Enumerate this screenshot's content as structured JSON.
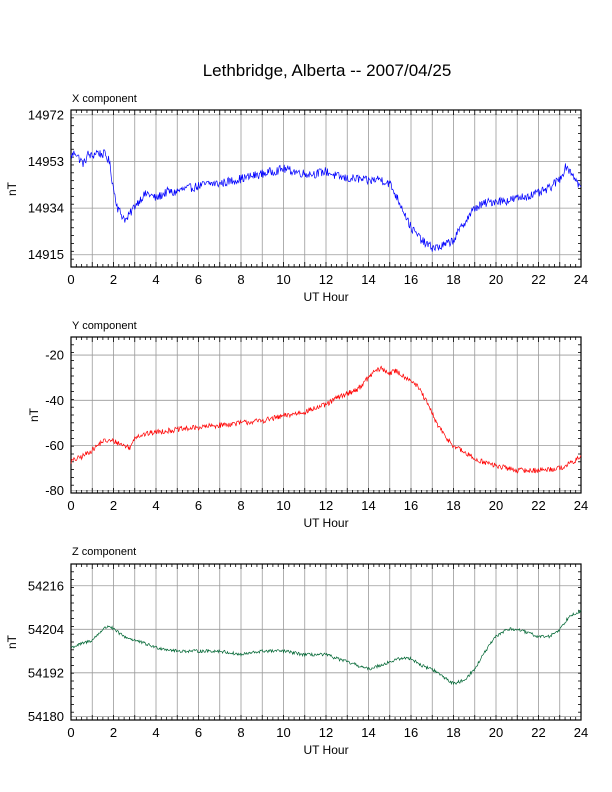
{
  "title": "Lethbridge, Alberta -- 2007/04/25",
  "chart_data": [
    {
      "type": "line",
      "panel_label": "X component",
      "xlabel": "UT Hour",
      "ylabel": "nT",
      "xlim": [
        0,
        24
      ],
      "ylim": [
        14910,
        14974
      ],
      "x_ticks": [
        "0",
        "2",
        "4",
        "6",
        "8",
        "10",
        "12",
        "14",
        "16",
        "18",
        "20",
        "22",
        "24"
      ],
      "y_ticks": [
        "14972",
        "14953",
        "14934",
        "14915"
      ],
      "y_tick_values": [
        14972,
        14953,
        14934,
        14915
      ],
      "grid": true,
      "color": "#0000ff",
      "noise": 1.8,
      "x": [
        0,
        0.2,
        0.4,
        0.6,
        0.8,
        1.0,
        1.2,
        1.4,
        1.6,
        1.8,
        2.0,
        2.2,
        2.4,
        2.6,
        2.8,
        3.0,
        3.2,
        3.4,
        3.6,
        3.8,
        4.0,
        4.2,
        4.4,
        4.6,
        4.8,
        5.0,
        5.5,
        6.0,
        6.5,
        7.0,
        7.5,
        8.0,
        8.5,
        9.0,
        9.5,
        10.0,
        10.5,
        11.0,
        11.5,
        12.0,
        12.5,
        13.0,
        13.5,
        14.0,
        14.5,
        15.0,
        15.3,
        15.6,
        16.0,
        16.3,
        16.6,
        17.0,
        17.3,
        17.6,
        18.0,
        18.5,
        19.0,
        19.5,
        20.0,
        20.5,
        21.0,
        21.5,
        22.0,
        22.5,
        23.0,
        23.3,
        23.6,
        24.0
      ],
      "y": [
        14955,
        14957,
        14954,
        14952,
        14956,
        14955,
        14957,
        14956,
        14956,
        14953,
        14942,
        14934,
        14931,
        14929,
        14932,
        14935,
        14937,
        14939,
        14940,
        14939,
        14938,
        14939,
        14940,
        14941,
        14940,
        14941,
        14942,
        14943,
        14944,
        14944,
        14945,
        14946,
        14947,
        14948,
        14949,
        14950,
        14949,
        14948,
        14948,
        14949,
        14947,
        14946,
        14946,
        14945,
        14946,
        14944,
        14939,
        14934,
        14926,
        14923,
        14920,
        14918,
        14918,
        14919,
        14921,
        14928,
        14934,
        14936,
        14937,
        14937,
        14938,
        14939,
        14940,
        14942,
        14946,
        14951,
        14948,
        14942
      ]
    },
    {
      "type": "line",
      "panel_label": "Y component",
      "xlabel": "UT Hour",
      "ylabel": "nT",
      "xlim": [
        0,
        24
      ],
      "ylim": [
        -81,
        -12
      ],
      "x_ticks": [
        "0",
        "2",
        "4",
        "6",
        "8",
        "10",
        "12",
        "14",
        "16",
        "18",
        "20",
        "22",
        "24"
      ],
      "y_ticks": [
        "-20",
        "-40",
        "-60",
        "-80"
      ],
      "y_tick_values": [
        -20,
        -40,
        -60,
        -80
      ],
      "grid": true,
      "color": "#ff0000",
      "noise": 1.2,
      "x": [
        0,
        0.5,
        1.0,
        1.5,
        2.0,
        2.5,
        2.8,
        3.0,
        3.5,
        4.0,
        5.0,
        6.0,
        7.0,
        8.0,
        9.0,
        10.0,
        11.0,
        12.0,
        12.5,
        13.0,
        13.5,
        14.0,
        14.3,
        14.6,
        15.0,
        15.3,
        15.6,
        16.0,
        16.4,
        16.8,
        17.2,
        17.6,
        18.0,
        18.5,
        19.0,
        20.0,
        21.0,
        22.0,
        23.0,
        23.5,
        24.0
      ],
      "y": [
        -67,
        -65,
        -62,
        -58,
        -58,
        -60,
        -61,
        -56,
        -55,
        -54,
        -53,
        -52,
        -51,
        -50,
        -49,
        -47,
        -45,
        -42,
        -39,
        -37,
        -35,
        -30,
        -27,
        -26,
        -28,
        -27,
        -29,
        -31,
        -35,
        -42,
        -50,
        -56,
        -60,
        -63,
        -66,
        -69,
        -71,
        -71,
        -70,
        -68,
        -65
      ]
    },
    {
      "type": "line",
      "panel_label": "Z component",
      "xlabel": "UT Hour",
      "ylabel": "nT",
      "xlim": [
        0,
        24
      ],
      "ylim": [
        54179,
        54222
      ],
      "x_ticks": [
        "0",
        "2",
        "4",
        "6",
        "8",
        "10",
        "12",
        "14",
        "16",
        "18",
        "20",
        "22",
        "24"
      ],
      "y_ticks": [
        "54216",
        "54204",
        "54192",
        "54180"
      ],
      "y_tick_values": [
        54216,
        54204,
        54192,
        54180
      ],
      "grid": true,
      "color": "#006633",
      "noise": 0.45,
      "x": [
        0,
        0.5,
        1.0,
        1.5,
        1.8,
        2.0,
        2.5,
        3.0,
        3.5,
        4.0,
        5.0,
        6.0,
        7.0,
        8.0,
        9.0,
        10.0,
        11.0,
        12.0,
        12.5,
        13.0,
        13.5,
        14.0,
        14.5,
        15.0,
        15.5,
        16.0,
        16.5,
        17.0,
        17.5,
        18.0,
        18.5,
        19.0,
        19.5,
        20.0,
        20.5,
        21.0,
        21.5,
        22.0,
        22.5,
        23.0,
        23.5,
        24.0
      ],
      "y": [
        54199,
        54200,
        54201,
        54204,
        54205,
        54204,
        54202,
        54201,
        54200,
        54199,
        54198,
        54198,
        54198,
        54197,
        54198,
        54198,
        54197,
        54197,
        54196,
        54195,
        54194,
        54193,
        54194,
        54195,
        54196,
        54196,
        54194,
        54193,
        54191,
        54189,
        54190,
        54193,
        54198,
        54202,
        54204,
        54204,
        54203,
        54202,
        54202,
        54204,
        54208,
        54209
      ]
    }
  ]
}
